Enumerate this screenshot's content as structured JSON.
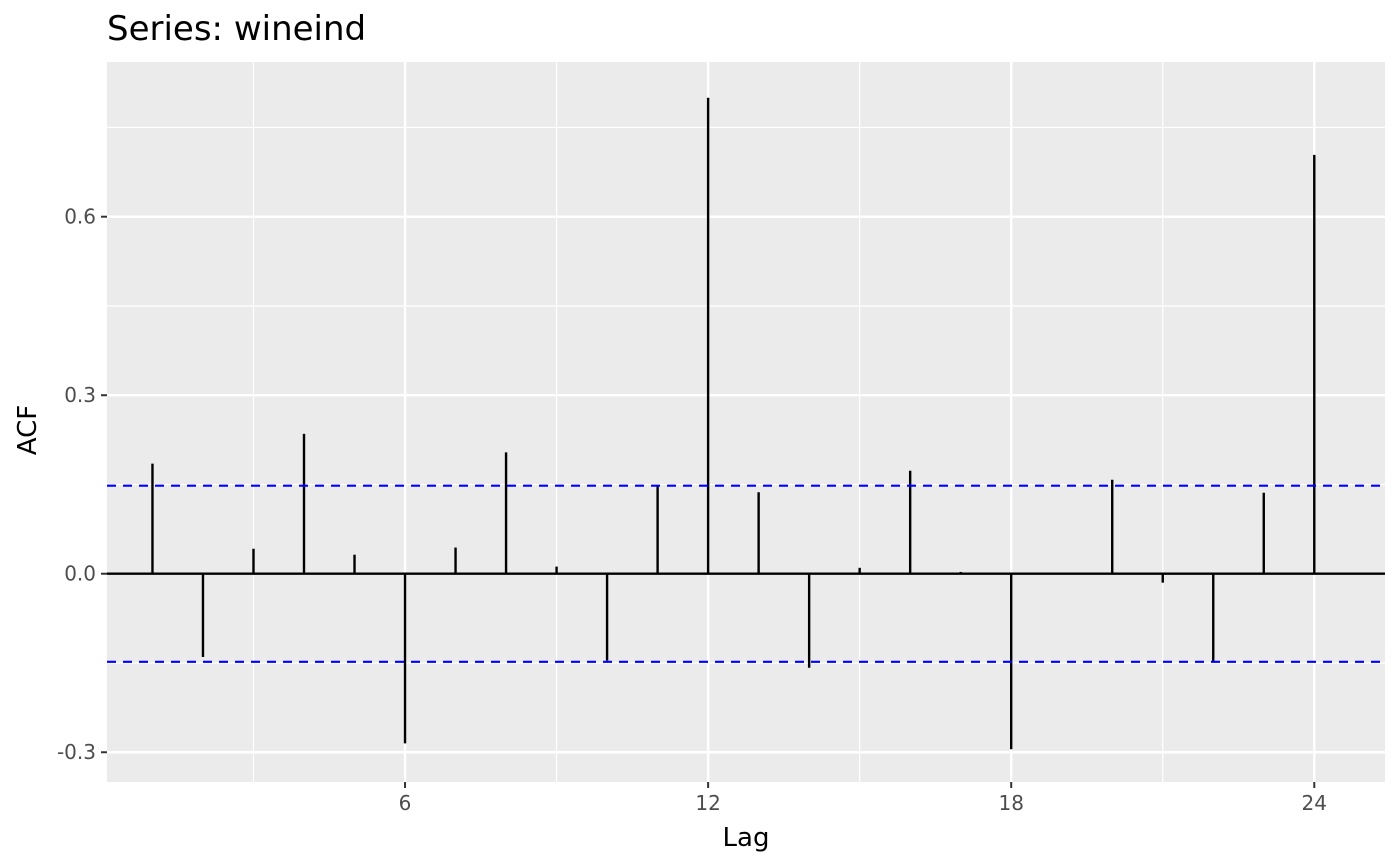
{
  "chart_data": {
    "type": "bar",
    "title": "Series: wineind",
    "xlabel": "Lag",
    "ylabel": "ACF",
    "x": [
      1,
      2,
      3,
      4,
      5,
      6,
      7,
      8,
      9,
      10,
      11,
      12,
      13,
      14,
      15,
      16,
      17,
      18,
      19,
      20,
      21,
      22,
      23,
      24
    ],
    "values": [
      0.185,
      -0.14,
      0.042,
      0.235,
      0.032,
      -0.285,
      0.044,
      0.204,
      0.012,
      -0.146,
      0.148,
      0.8,
      0.137,
      -0.158,
      0.01,
      0.173,
      0.003,
      -0.295,
      0.0,
      0.158,
      -0.015,
      -0.148,
      0.136,
      0.704
    ],
    "conf_limits": [
      0.148,
      -0.148
    ],
    "xticks": [
      6,
      12,
      18,
      24
    ],
    "xtick_labels": [
      "6",
      "12",
      "18",
      "24"
    ],
    "yticks": [
      -0.3,
      0.0,
      0.3,
      0.6
    ],
    "ytick_labels": [
      "-0.3",
      "0.0",
      "0.3",
      "0.6"
    ],
    "xlim": [
      0.1,
      25.4
    ],
    "ylim": [
      -0.35,
      0.86
    ],
    "grid": true,
    "colors": {
      "panel": "#ebebeb",
      "grid": "#ffffff",
      "bars": "#000000",
      "conf_line": "#0000ff"
    }
  }
}
